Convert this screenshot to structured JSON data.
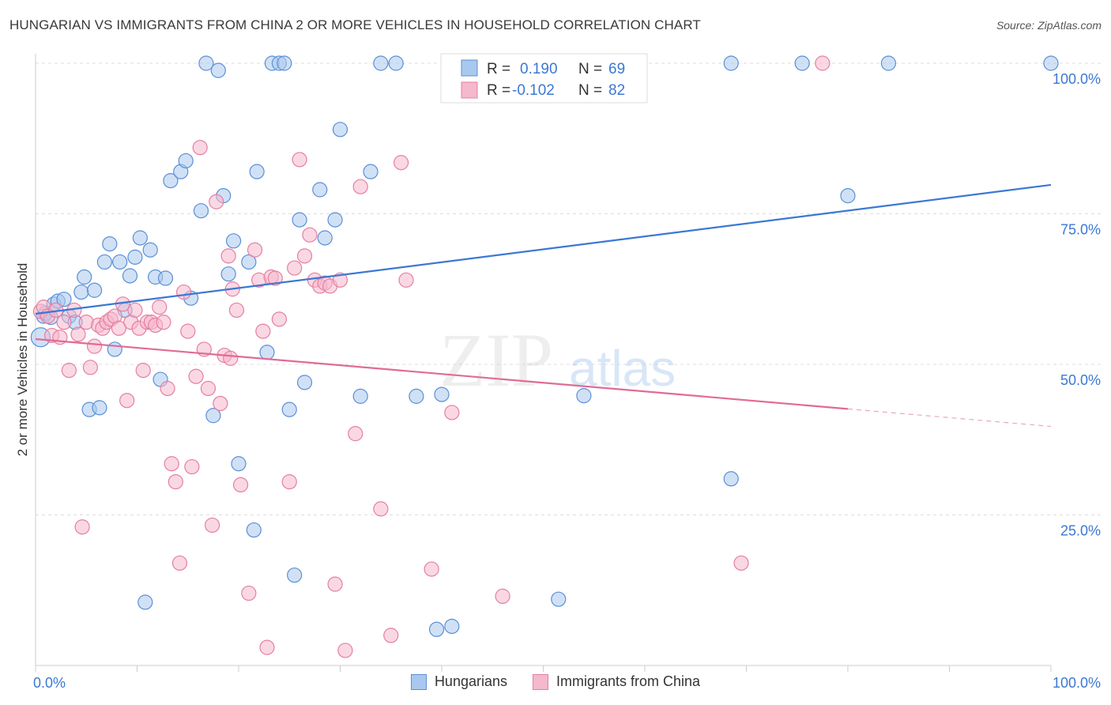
{
  "title": "HUNGARIAN VS IMMIGRANTS FROM CHINA 2 OR MORE VEHICLES IN HOUSEHOLD CORRELATION CHART",
  "source": "Source: ZipAtlas.com",
  "watermark": {
    "zip": "ZIP",
    "atlas": "atlas"
  },
  "colors": {
    "blue_fill": "#a9c8ef",
    "blue_stroke": "#5b8fd6",
    "blue_line": "#3b78d4",
    "pink_fill": "#f5b8cc",
    "pink_stroke": "#e57fa1",
    "pink_line": "#e06b97",
    "value_text": "#3b78d4",
    "grid": "#dddddd"
  },
  "legend_top": [
    {
      "r_label": "R =",
      "r_value": "0.190",
      "n_label": "N =",
      "n_value": "69"
    },
    {
      "r_label": "R =",
      "r_value": "-0.102",
      "n_label": "N =",
      "n_value": "82"
    }
  ],
  "chart_data": {
    "type": "scatter",
    "title": "HUNGARIAN VS IMMIGRANTS FROM CHINA 2 OR MORE VEHICLES IN HOUSEHOLD CORRELATION CHART",
    "xlabel": "",
    "ylabel": "2 or more Vehicles in Household",
    "xlim": [
      0,
      100
    ],
    "ylim": [
      0,
      100
    ],
    "x_tick_labels": {
      "min": "0.0%",
      "max": "100.0%"
    },
    "y_ticks": [
      {
        "value": 25,
        "label": "25.0%"
      },
      {
        "value": 50,
        "label": "50.0%"
      },
      {
        "value": 75,
        "label": "75.0%"
      },
      {
        "value": 100,
        "label": "100.0%"
      }
    ],
    "grid": true,
    "legend_position": "bottom",
    "series": [
      {
        "name": "Hungarians",
        "color": "#a9c8ef",
        "trend": {
          "x": [
            0,
            100
          ],
          "y": [
            58.4,
            79.8
          ],
          "dashed_from": null
        },
        "points": [
          [
            0.5,
            54.5
          ],
          [
            0.8,
            58.0
          ],
          [
            1.0,
            58.5
          ],
          [
            1.5,
            57.8
          ],
          [
            1.8,
            60.0
          ],
          [
            2.2,
            60.5
          ],
          [
            2.8,
            60.8
          ],
          [
            3.3,
            58.0
          ],
          [
            3.9,
            57.0
          ],
          [
            4.5,
            62.0
          ],
          [
            4.8,
            64.5
          ],
          [
            5.3,
            42.5
          ],
          [
            5.8,
            62.3
          ],
          [
            6.3,
            42.8
          ],
          [
            6.8,
            67.0
          ],
          [
            7.3,
            70.0
          ],
          [
            7.8,
            52.5
          ],
          [
            8.3,
            67.0
          ],
          [
            8.8,
            59.0
          ],
          [
            9.3,
            64.7
          ],
          [
            9.8,
            67.8
          ],
          [
            10.3,
            71.0
          ],
          [
            10.8,
            10.5
          ],
          [
            11.3,
            69.0
          ],
          [
            11.8,
            64.5
          ],
          [
            12.3,
            47.5
          ],
          [
            12.8,
            64.3
          ],
          [
            13.3,
            80.5
          ],
          [
            14.3,
            82.0
          ],
          [
            14.8,
            83.8
          ],
          [
            15.3,
            61.0
          ],
          [
            16.3,
            75.5
          ],
          [
            16.8,
            100.0
          ],
          [
            17.5,
            41.5
          ],
          [
            18.0,
            98.8
          ],
          [
            18.5,
            78.0
          ],
          [
            19.0,
            65.0
          ],
          [
            19.5,
            70.5
          ],
          [
            20.0,
            33.5
          ],
          [
            21.0,
            67.0
          ],
          [
            21.5,
            22.5
          ],
          [
            21.8,
            82.0
          ],
          [
            22.8,
            52.0
          ],
          [
            23.3,
            100.0
          ],
          [
            24.0,
            100.0
          ],
          [
            24.5,
            100.0
          ],
          [
            25.0,
            42.5
          ],
          [
            25.5,
            15.0
          ],
          [
            26.0,
            74.0
          ],
          [
            26.5,
            47.0
          ],
          [
            28.0,
            79.0
          ],
          [
            28.5,
            71.0
          ],
          [
            29.5,
            74.0
          ],
          [
            30.0,
            89.0
          ],
          [
            32.0,
            44.7
          ],
          [
            33.0,
            82.0
          ],
          [
            34.0,
            100.0
          ],
          [
            35.5,
            100.0
          ],
          [
            37.5,
            44.7
          ],
          [
            39.5,
            6.0
          ],
          [
            40.0,
            45.0
          ],
          [
            41.0,
            6.5
          ],
          [
            51.5,
            11.0
          ],
          [
            54.0,
            44.8
          ],
          [
            68.5,
            31.0
          ],
          [
            68.5,
            100.0
          ],
          [
            75.5,
            100.0
          ],
          [
            80.0,
            78.0
          ],
          [
            84.0,
            100.0
          ],
          [
            100.0,
            100.0
          ]
        ]
      },
      {
        "name": "Immigrants from China",
        "color": "#f5b8cc",
        "trend": {
          "x": [
            0,
            100
          ],
          "y": [
            54.2,
            39.7
          ],
          "dashed_from": 80
        },
        "points": [
          [
            0.5,
            58.8
          ],
          [
            0.8,
            59.5
          ],
          [
            1.2,
            58.0
          ],
          [
            1.6,
            54.8
          ],
          [
            2.0,
            59.0
          ],
          [
            2.4,
            54.5
          ],
          [
            2.8,
            57.0
          ],
          [
            3.3,
            49.0
          ],
          [
            3.8,
            59.0
          ],
          [
            4.2,
            55.0
          ],
          [
            4.6,
            23.0
          ],
          [
            5.0,
            57.0
          ],
          [
            5.4,
            49.5
          ],
          [
            5.8,
            53.0
          ],
          [
            6.2,
            56.5
          ],
          [
            6.6,
            56.0
          ],
          [
            7.0,
            57.0
          ],
          [
            7.4,
            57.5
          ],
          [
            7.8,
            58.0
          ],
          [
            8.2,
            56.0
          ],
          [
            8.6,
            60.0
          ],
          [
            9.0,
            44.0
          ],
          [
            9.4,
            57.0
          ],
          [
            9.8,
            59.0
          ],
          [
            10.2,
            56.0
          ],
          [
            10.6,
            49.0
          ],
          [
            11.0,
            57.0
          ],
          [
            11.4,
            57.0
          ],
          [
            11.8,
            56.5
          ],
          [
            12.2,
            59.5
          ],
          [
            12.6,
            57.0
          ],
          [
            13.0,
            46.0
          ],
          [
            13.4,
            33.5
          ],
          [
            13.8,
            30.5
          ],
          [
            14.2,
            17.0
          ],
          [
            14.6,
            62.0
          ],
          [
            15.0,
            55.5
          ],
          [
            15.4,
            33.0
          ],
          [
            15.8,
            48.0
          ],
          [
            16.2,
            86.0
          ],
          [
            16.6,
            52.5
          ],
          [
            17.0,
            46.0
          ],
          [
            17.4,
            23.3
          ],
          [
            17.8,
            77.0
          ],
          [
            18.2,
            43.5
          ],
          [
            18.6,
            51.5
          ],
          [
            19.0,
            68.0
          ],
          [
            19.4,
            62.5
          ],
          [
            19.8,
            59.0
          ],
          [
            20.2,
            30.0
          ],
          [
            21.0,
            12.0
          ],
          [
            21.6,
            69.0
          ],
          [
            22.0,
            64.0
          ],
          [
            22.4,
            55.5
          ],
          [
            22.8,
            3.0
          ],
          [
            23.2,
            64.5
          ],
          [
            23.6,
            64.3
          ],
          [
            24.0,
            57.5
          ],
          [
            25.0,
            30.5
          ],
          [
            25.5,
            66.0
          ],
          [
            26.0,
            84.0
          ],
          [
            26.5,
            68.0
          ],
          [
            27.0,
            71.5
          ],
          [
            27.5,
            64.0
          ],
          [
            28.0,
            63.0
          ],
          [
            28.5,
            63.5
          ],
          [
            29.0,
            63.0
          ],
          [
            29.5,
            13.5
          ],
          [
            30.0,
            64.0
          ],
          [
            30.5,
            2.5
          ],
          [
            31.5,
            38.5
          ],
          [
            32.0,
            79.5
          ],
          [
            34.0,
            26.0
          ],
          [
            35.0,
            5.0
          ],
          [
            36.0,
            83.5
          ],
          [
            36.5,
            64.0
          ],
          [
            39.0,
            16.0
          ],
          [
            41.0,
            42.0
          ],
          [
            46.0,
            11.5
          ],
          [
            69.5,
            17.0
          ],
          [
            77.5,
            100.0
          ],
          [
            19.2,
            51.0
          ]
        ]
      }
    ]
  },
  "legend_bottom": [
    {
      "label": "Hungarians"
    },
    {
      "label": "Immigrants from China"
    }
  ]
}
